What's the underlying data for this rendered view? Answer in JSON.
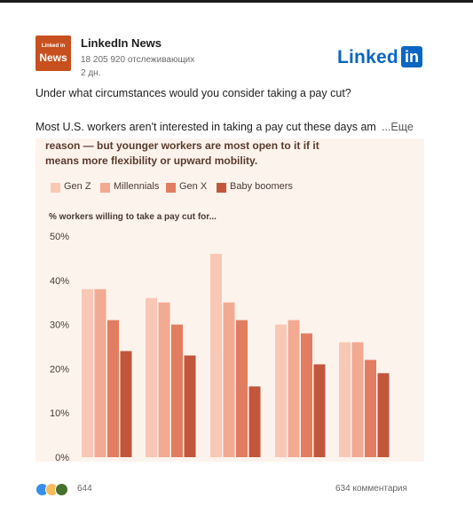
{
  "post": {
    "page_name": "LinkedIn News",
    "followers": "18 205 920 отслеживающих",
    "time": "2 дн.",
    "logo_small": "Linked in",
    "logo_big": "News",
    "brand_word": "Linked",
    "brand_in": "in",
    "question": "Under what circumstances would you consider taking a pay cut?",
    "description": "Most U.S. workers aren't interested in taking a pay cut these days am",
    "more_label": "...Еще"
  },
  "chart": {
    "headline_line1": "reason — but younger workers are most open to it if it",
    "headline_line2": "means more flexibility or upward mobility.",
    "subtitle": "% workers willing to take a pay cut for..."
  },
  "chart_data": {
    "type": "bar",
    "title": "% workers willing to take a pay cut for...",
    "categories": [
      "",
      "",
      "",
      "",
      ""
    ],
    "series": [
      {
        "name": "Gen Z",
        "color": "#f8c8b4",
        "values": [
          38,
          36,
          46,
          30,
          26
        ]
      },
      {
        "name": "Millennials",
        "color": "#f2aa92",
        "values": [
          38,
          35,
          35,
          31,
          26
        ]
      },
      {
        "name": "Gen X",
        "color": "#e17d60",
        "values": [
          31,
          30,
          31,
          28,
          22
        ]
      },
      {
        "name": "Baby boomers",
        "color": "#c2563d",
        "values": [
          24,
          23,
          16,
          21,
          19
        ]
      }
    ],
    "ylim": [
      0,
      50
    ],
    "yticks": [
      "0%",
      "10%",
      "20%",
      "30%",
      "40%",
      "50%"
    ],
    "grid": true,
    "legend": "top-left"
  },
  "footer": {
    "reactions_count": "644",
    "comments": "634 комментария",
    "reaction_colors": [
      "#378fe9",
      "#f5bb5c",
      "#44712e"
    ]
  }
}
